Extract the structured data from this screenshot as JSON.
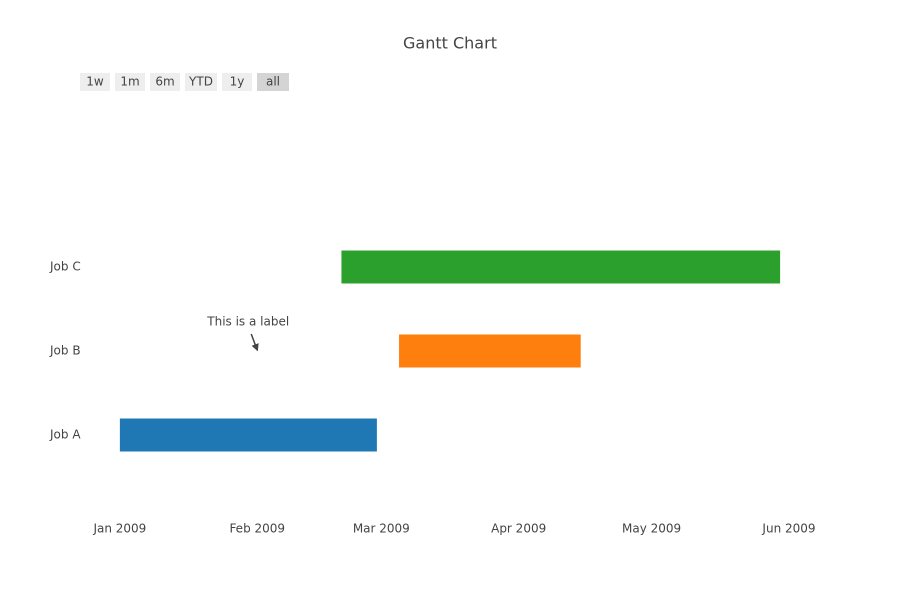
{
  "chart_data": {
    "type": "gantt",
    "title": "Gantt Chart",
    "tasks": [
      {
        "name": "Job A",
        "start": "2009-01-01",
        "finish": "2009-02-28",
        "color": "#1f77b4"
      },
      {
        "name": "Job B",
        "start": "2009-03-05",
        "finish": "2009-04-15",
        "color": "#ff7f0e"
      },
      {
        "name": "Job C",
        "start": "2009-02-20",
        "finish": "2009-05-30",
        "color": "#2ca02c"
      }
    ],
    "xlim": [
      "2008-12-23",
      "2009-06-08"
    ],
    "xticks": [
      {
        "value": "2009-01-01",
        "label": "Jan 2009"
      },
      {
        "value": "2009-02-01",
        "label": "Feb 2009"
      },
      {
        "value": "2009-03-01",
        "label": "Mar 2009"
      },
      {
        "value": "2009-04-01",
        "label": "Apr 2009"
      },
      {
        "value": "2009-05-01",
        "label": "May 2009"
      },
      {
        "value": "2009-06-01",
        "label": "Jun 2009"
      }
    ],
    "annotations": [
      {
        "text": "This is a label",
        "x": "2009-02-01",
        "y": "Job B"
      }
    ],
    "range_buttons": [
      "1w",
      "1m",
      "6m",
      "YTD",
      "1y",
      "all"
    ],
    "active_button": "all"
  }
}
